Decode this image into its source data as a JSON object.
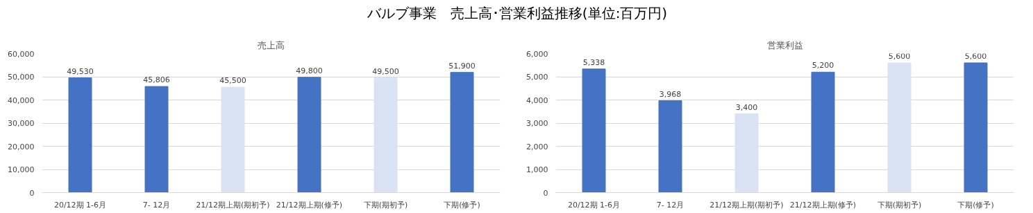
{
  "chart_data": [
    {
      "type": "other",
      "title": "バルブ事業　売上高･営業利益推移(単位:百万円)"
    },
    {
      "type": "bar",
      "title": "売上高",
      "categories": [
        "20/12期 1-6月",
        "7- 12月",
        "21/12期上期(期初予)",
        "21/12期上期(修予)",
        "下期(期初予)",
        "下期(修予)"
      ],
      "values": [
        49530,
        45806,
        45500,
        49800,
        49500,
        51900
      ],
      "colors": [
        "#4472c4",
        "#4472c4",
        "#dae3f3",
        "#4472c4",
        "#dae3f3",
        "#4472c4"
      ],
      "value_labels": [
        "49,530",
        "45,806",
        "45,500",
        "49,800",
        "49,500",
        "51,900"
      ],
      "ylim": [
        0,
        60000
      ],
      "yticks": [
        {
          "value": 0,
          "label": "0"
        },
        {
          "value": 10000,
          "label": "10,000"
        },
        {
          "value": 20000,
          "label": "20,000"
        },
        {
          "value": 30000,
          "label": "30,000"
        },
        {
          "value": 40000,
          "label": "40,000"
        },
        {
          "value": 50000,
          "label": "50,000"
        },
        {
          "value": 60000,
          "label": "60,000"
        }
      ],
      "grid": "y"
    },
    {
      "type": "bar",
      "title": "営業利益",
      "categories": [
        "20/12期 1-6月",
        "7- 12月",
        "21/12期上期(期初予)",
        "21/12期上期(修予)",
        "下期(期初予)",
        "下期(修予)"
      ],
      "values": [
        5338,
        3968,
        3400,
        5200,
        5600,
        5600
      ],
      "colors": [
        "#4472c4",
        "#4472c4",
        "#dae3f3",
        "#4472c4",
        "#dae3f3",
        "#4472c4"
      ],
      "value_labels": [
        "5,338",
        "3,968",
        "3,400",
        "5,200",
        "5,600",
        "5,600"
      ],
      "ylim": [
        0,
        6000
      ],
      "yticks": [
        {
          "value": 0,
          "label": "0"
        },
        {
          "value": 1000,
          "label": "1,000"
        },
        {
          "value": 2000,
          "label": "2,000"
        },
        {
          "value": 3000,
          "label": "3,000"
        },
        {
          "value": 4000,
          "label": "4,000"
        },
        {
          "value": 5000,
          "label": "5,000"
        },
        {
          "value": 6000,
          "label": "6,000"
        }
      ],
      "grid": "y"
    }
  ]
}
